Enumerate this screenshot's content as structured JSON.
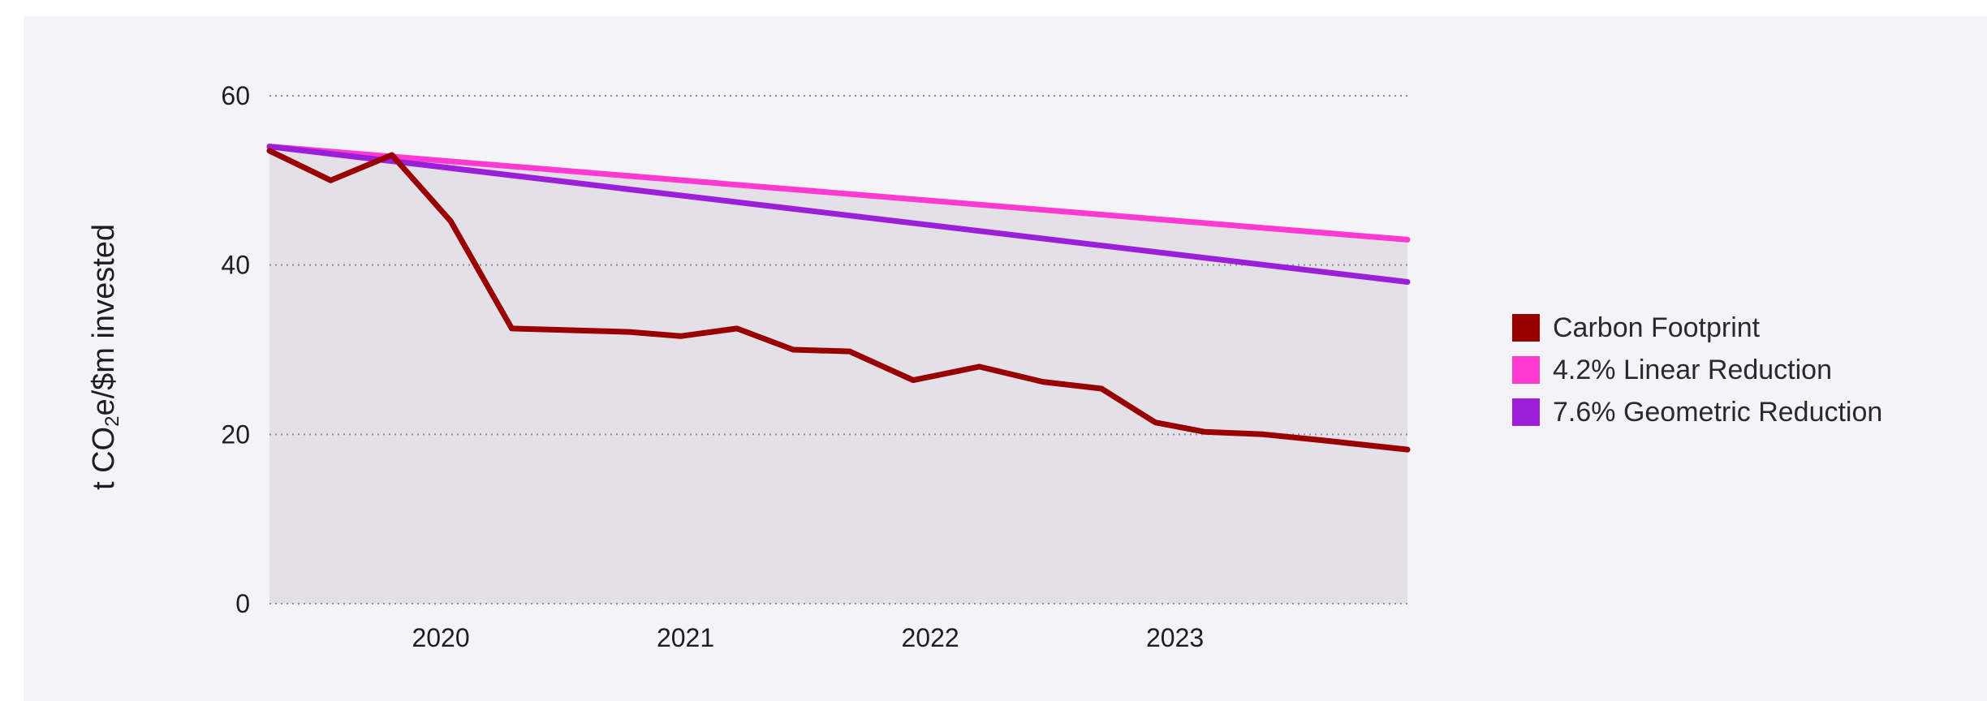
{
  "chart_data": {
    "type": "line",
    "title": "",
    "ylabel": {
      "prefix": "t CO",
      "subscript": "2",
      "suffix": "e/$m invested"
    },
    "xlabel": "",
    "ylim": [
      0,
      60
    ],
    "yticks": [
      0,
      20,
      40,
      60
    ],
    "xlim": [
      2019.3,
      2023.95
    ],
    "xticks": [
      {
        "value": 2020,
        "label": "2020"
      },
      {
        "value": 2021,
        "label": "2021"
      },
      {
        "value": 2022,
        "label": "2022"
      },
      {
        "value": 2023,
        "label": "2023"
      }
    ],
    "grid": "horizontal-dotted",
    "legend_position": "right",
    "shaded_area": {
      "from_series": 1,
      "color": "#e3e1e7"
    },
    "series": [
      {
        "name": "Carbon Footprint",
        "color": "#990000",
        "x": [
          2019.3,
          2019.55,
          2019.8,
          2020.04,
          2020.29,
          2020.77,
          2020.98,
          2021.21,
          2021.44,
          2021.67,
          2021.93,
          2022.2,
          2022.46,
          2022.7,
          2022.92,
          2023.12,
          2023.36,
          2023.6,
          2023.95
        ],
        "y": [
          53.5,
          50,
          53,
          45.2,
          32.5,
          32.1,
          31.6,
          32.5,
          30,
          29.8,
          26.4,
          28,
          26.2,
          25.4,
          21.4,
          20.3,
          20,
          19.3,
          18.2
        ]
      },
      {
        "name": "4.2% Linear Reduction",
        "color": "#ff3ad2",
        "x": [
          2019.3,
          2023.95
        ],
        "y": [
          54,
          43
        ]
      },
      {
        "name": "7.6% Geometric Reduction",
        "color": "#9b1fd9",
        "x": [
          2019.3,
          2023.95
        ],
        "y": [
          54,
          38
        ]
      }
    ]
  }
}
